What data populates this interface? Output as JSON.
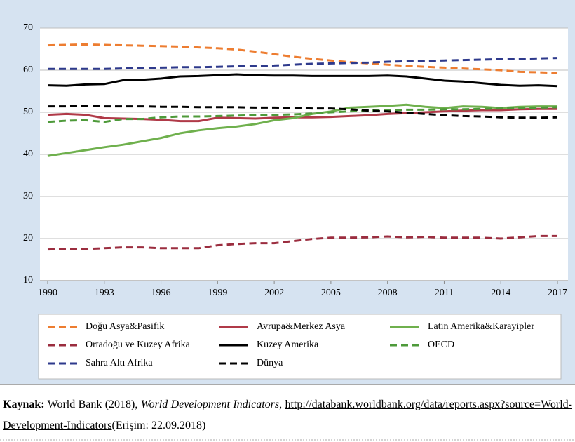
{
  "chart_data": {
    "type": "line",
    "x": [
      1990,
      1991,
      1992,
      1993,
      1994,
      1995,
      1996,
      1997,
      1998,
      1999,
      2000,
      2001,
      2002,
      2003,
      2004,
      2005,
      2006,
      2007,
      2008,
      2009,
      2010,
      2011,
      2012,
      2013,
      2014,
      2015,
      2016,
      2017
    ],
    "xlim": [
      1990,
      2017
    ],
    "xticks": [
      1990,
      1993,
      1996,
      1999,
      2002,
      2005,
      2008,
      2011,
      2014,
      2017
    ],
    "ylim": [
      10,
      70
    ],
    "yticks": [
      10,
      20,
      30,
      40,
      50,
      60,
      70
    ],
    "grid": true,
    "legend": "bottom",
    "series": [
      {
        "name": "Doğu Asya&Pasifik",
        "color": "#ed7d31",
        "style": "dashed",
        "values": [
          65.9,
          66.0,
          66.1,
          66.0,
          65.9,
          65.8,
          65.7,
          65.6,
          65.4,
          65.2,
          64.9,
          64.4,
          63.8,
          63.2,
          62.7,
          62.3,
          61.9,
          61.6,
          61.3,
          61.0,
          60.8,
          60.6,
          60.4,
          60.2,
          60.0,
          59.6,
          59.5,
          59.3
        ]
      },
      {
        "name": "Avrupa&Merkez Asya",
        "color": "#b03a48",
        "style": "solid",
        "values": [
          49.4,
          49.6,
          49.4,
          48.6,
          48.5,
          48.4,
          48.2,
          47.9,
          47.9,
          48.7,
          48.6,
          48.5,
          48.7,
          48.8,
          48.8,
          48.9,
          49.1,
          49.3,
          49.6,
          49.8,
          50.0,
          50.2,
          50.4,
          50.5,
          50.5,
          50.7,
          50.8,
          50.8
        ]
      },
      {
        "name": "Latin Amerika&Karayipler",
        "color": "#6fb04d",
        "style": "solid",
        "values": [
          39.6,
          40.3,
          41.0,
          41.7,
          42.3,
          43.1,
          43.9,
          45.0,
          45.7,
          46.2,
          46.6,
          47.2,
          48.1,
          48.6,
          49.6,
          50.2,
          51.1,
          51.3,
          51.5,
          51.8,
          51.3,
          51.0,
          51.4,
          51.3,
          51.0,
          51.3,
          51.4,
          51.4
        ]
      },
      {
        "name": "Ortadoğu ve Kuzey Afrika",
        "color": "#9b2d3f",
        "style": "dashed",
        "values": [
          17.4,
          17.5,
          17.5,
          17.7,
          17.9,
          17.9,
          17.7,
          17.7,
          17.7,
          18.4,
          18.7,
          18.9,
          18.9,
          19.4,
          19.9,
          20.2,
          20.2,
          20.3,
          20.5,
          20.3,
          20.4,
          20.2,
          20.2,
          20.2,
          20.0,
          20.3,
          20.6,
          20.6
        ]
      },
      {
        "name": "Kuzey Amerika",
        "color": "#000000",
        "style": "solid",
        "values": [
          56.4,
          56.3,
          56.6,
          56.7,
          57.6,
          57.7,
          58.0,
          58.5,
          58.6,
          58.8,
          59.0,
          58.8,
          58.7,
          58.7,
          58.6,
          58.6,
          58.6,
          58.6,
          58.7,
          58.5,
          58.0,
          57.5,
          57.3,
          56.9,
          56.5,
          56.3,
          56.4,
          56.2
        ]
      },
      {
        "name": "OECD",
        "color": "#4e9a3a",
        "style": "dashed",
        "values": [
          47.7,
          48.0,
          48.1,
          47.7,
          48.4,
          48.4,
          48.8,
          49.0,
          49.0,
          49.1,
          49.2,
          49.3,
          49.4,
          49.5,
          49.7,
          50.0,
          50.2,
          50.4,
          50.5,
          50.6,
          50.6,
          50.7,
          50.7,
          50.8,
          50.9,
          51.0,
          51.1,
          51.2
        ]
      },
      {
        "name": "Sahra Altı Afrika",
        "color": "#2e3a8c",
        "style": "dashed",
        "values": [
          60.3,
          60.3,
          60.3,
          60.3,
          60.4,
          60.5,
          60.6,
          60.7,
          60.7,
          60.8,
          60.9,
          61.0,
          61.1,
          61.3,
          61.5,
          61.6,
          61.7,
          61.8,
          62.0,
          62.1,
          62.2,
          62.3,
          62.4,
          62.5,
          62.6,
          62.7,
          62.8,
          62.9
        ]
      },
      {
        "name": "Dünya",
        "color": "#000000",
        "style": "dashed",
        "values": [
          51.4,
          51.4,
          51.5,
          51.4,
          51.4,
          51.4,
          51.3,
          51.3,
          51.2,
          51.2,
          51.2,
          51.1,
          51.1,
          51.0,
          50.9,
          50.9,
          50.7,
          50.4,
          50.2,
          49.9,
          49.6,
          49.3,
          49.1,
          49.0,
          48.8,
          48.7,
          48.7,
          48.8
        ]
      }
    ]
  },
  "source": {
    "label": "Kaynak:",
    "text": "World Bank (2018),",
    "title": "World Development Indicators",
    "separator": ",",
    "url": "http://databank.worldbank.org/data/reports.aspx?source=World-Development-Indicators",
    "access": "(Erişim: 22.09.2018)"
  }
}
